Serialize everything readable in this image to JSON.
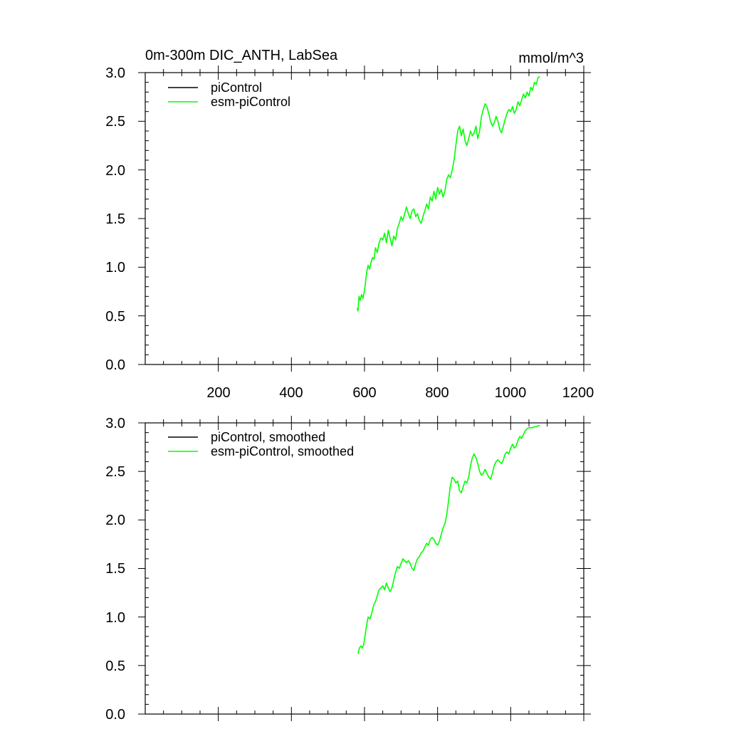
{
  "chart_data": [
    {
      "type": "line",
      "title": "0m-300m DIC_ANTH, LabSea",
      "units": "mmol/m^3",
      "xlim": [
        0,
        1200
      ],
      "ylim": [
        0.0,
        3.0
      ],
      "xticks": [
        200,
        400,
        600,
        800,
        1000,
        1200
      ],
      "xtick_labels": [
        "200",
        "400",
        "600",
        "800",
        "1000",
        "1200"
      ],
      "yticks": [
        0.0,
        0.5,
        1.0,
        1.5,
        2.0,
        2.5,
        3.0
      ],
      "ytick_labels": [
        "0.0",
        "0.5",
        "1.0",
        "1.5",
        "2.0",
        "2.5",
        "3.0"
      ],
      "legend_position": "top-left",
      "series": [
        {
          "name": "piControl",
          "color": "#000000",
          "x": [],
          "y": []
        },
        {
          "name": "esm-piControl",
          "color": "#00ff00",
          "x": [
            580,
            582,
            585,
            588,
            592,
            596,
            600,
            603,
            606,
            610,
            614,
            618,
            622,
            626,
            630,
            635,
            640,
            645,
            650,
            655,
            660,
            665,
            670,
            675,
            680,
            685,
            690,
            695,
            700,
            705,
            710,
            715,
            720,
            725,
            730,
            735,
            740,
            745,
            750,
            755,
            760,
            765,
            770,
            775,
            780,
            785,
            790,
            795,
            800,
            805,
            810,
            815,
            820,
            825,
            830,
            835,
            840,
            845,
            850,
            855,
            860,
            865,
            870,
            875,
            880,
            885,
            890,
            895,
            900,
            905,
            910,
            915,
            920,
            925,
            930,
            935,
            940,
            945,
            950,
            955,
            960,
            965,
            970,
            975,
            980,
            985,
            990,
            995,
            1000,
            1005,
            1010,
            1015,
            1020,
            1025,
            1030,
            1035,
            1040,
            1045,
            1050,
            1055,
            1060,
            1065,
            1070,
            1075,
            1080
          ],
          "y": [
            0.58,
            0.55,
            0.7,
            0.66,
            0.72,
            0.68,
            0.76,
            0.85,
            0.95,
            1.02,
            0.98,
            1.05,
            1.1,
            1.08,
            1.2,
            1.15,
            1.25,
            1.3,
            1.28,
            1.35,
            1.25,
            1.38,
            1.3,
            1.22,
            1.32,
            1.28,
            1.4,
            1.45,
            1.52,
            1.48,
            1.55,
            1.62,
            1.55,
            1.5,
            1.58,
            1.6,
            1.52,
            1.55,
            1.48,
            1.45,
            1.52,
            1.58,
            1.65,
            1.6,
            1.72,
            1.68,
            1.78,
            1.7,
            1.82,
            1.75,
            1.8,
            1.72,
            1.78,
            1.9,
            1.95,
            1.92,
            2.0,
            2.1,
            2.25,
            2.4,
            2.45,
            2.35,
            2.42,
            2.3,
            2.25,
            2.32,
            2.4,
            2.35,
            2.38,
            2.45,
            2.32,
            2.4,
            2.55,
            2.62,
            2.68,
            2.65,
            2.58,
            2.5,
            2.45,
            2.48,
            2.55,
            2.5,
            2.42,
            2.38,
            2.45,
            2.52,
            2.58,
            2.62,
            2.6,
            2.65,
            2.58,
            2.62,
            2.7,
            2.66,
            2.72,
            2.78,
            2.74,
            2.8,
            2.76,
            2.85,
            2.82,
            2.9,
            2.88,
            2.95,
            2.96
          ]
        }
      ]
    },
    {
      "type": "line",
      "title": "",
      "xlim": [
        0,
        1200
      ],
      "ylim": [
        0.0,
        3.0
      ],
      "yticks": [
        0.0,
        0.5,
        1.0,
        1.5,
        2.0,
        2.5,
        3.0
      ],
      "ytick_labels": [
        "0.0",
        "0.5",
        "1.0",
        "1.5",
        "2.0",
        "2.5",
        "3.0"
      ],
      "legend_position": "top-left",
      "series": [
        {
          "name": "piControl, smoothed",
          "color": "#000000",
          "x": [],
          "y": []
        },
        {
          "name": "esm-piControl, smoothed",
          "color": "#00ff00",
          "x": [
            582,
            586,
            590,
            594,
            598,
            602,
            606,
            610,
            615,
            620,
            625,
            630,
            635,
            640,
            645,
            650,
            655,
            660,
            665,
            670,
            675,
            680,
            685,
            690,
            695,
            700,
            705,
            710,
            715,
            720,
            725,
            730,
            735,
            740,
            745,
            750,
            755,
            760,
            765,
            770,
            775,
            780,
            785,
            790,
            795,
            800,
            805,
            810,
            815,
            820,
            825,
            830,
            835,
            840,
            845,
            850,
            855,
            860,
            865,
            870,
            875,
            880,
            885,
            890,
            895,
            900,
            905,
            910,
            915,
            920,
            925,
            930,
            935,
            940,
            945,
            950,
            955,
            960,
            965,
            970,
            975,
            980,
            985,
            990,
            995,
            1000,
            1005,
            1010,
            1015,
            1020,
            1025,
            1030,
            1035,
            1040,
            1045,
            1050,
            1055,
            1060,
            1065,
            1070,
            1075,
            1080
          ],
          "y": [
            0.62,
            0.68,
            0.7,
            0.68,
            0.72,
            0.82,
            0.92,
            1.0,
            0.98,
            1.04,
            1.12,
            1.16,
            1.22,
            1.28,
            1.3,
            1.32,
            1.28,
            1.35,
            1.3,
            1.26,
            1.3,
            1.38,
            1.46,
            1.52,
            1.5,
            1.55,
            1.6,
            1.58,
            1.56,
            1.58,
            1.55,
            1.5,
            1.48,
            1.55,
            1.6,
            1.62,
            1.66,
            1.68,
            1.72,
            1.76,
            1.74,
            1.8,
            1.82,
            1.8,
            1.76,
            1.74,
            1.78,
            1.85,
            1.92,
            1.96,
            2.05,
            2.2,
            2.35,
            2.44,
            2.42,
            2.38,
            2.4,
            2.3,
            2.28,
            2.34,
            2.4,
            2.38,
            2.44,
            2.56,
            2.64,
            2.68,
            2.64,
            2.58,
            2.5,
            2.46,
            2.48,
            2.52,
            2.48,
            2.44,
            2.42,
            2.48,
            2.56,
            2.6,
            2.62,
            2.6,
            2.58,
            2.62,
            2.68,
            2.7,
            2.68,
            2.74,
            2.78,
            2.74,
            2.76,
            2.82,
            2.86,
            2.84,
            2.88,
            2.92,
            2.94,
            2.95,
            2.95,
            2.95,
            2.96,
            2.96,
            2.97,
            2.97
          ]
        }
      ]
    }
  ]
}
